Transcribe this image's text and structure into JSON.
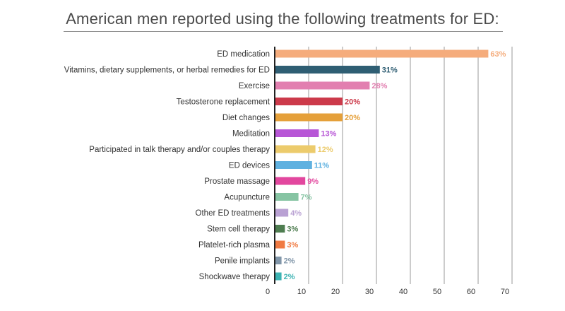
{
  "title": "American men reported using the following treatments for ED:",
  "chart_data": {
    "type": "bar",
    "orientation": "horizontal",
    "title": "American men reported using the following treatments for ED:",
    "xlabel": "",
    "ylabel": "",
    "xlim": [
      0,
      70
    ],
    "x_ticks": [
      0,
      10,
      20,
      30,
      40,
      50,
      60,
      70
    ],
    "grid": true,
    "categories": [
      "ED medication",
      "Vitamins, dietary supplements, or herbal remedies for ED",
      "Exercise",
      "Testosterone replacement",
      "Diet changes",
      "Meditation",
      "Participated in talk therapy and/or couples therapy",
      "ED devices",
      "Prostate massage",
      "Acupuncture",
      "Other ED treatments",
      "Stem cell therapy",
      "Platelet-rich plasma",
      "Penile implants",
      "Shockwave therapy"
    ],
    "values": [
      63,
      31,
      28,
      20,
      20,
      13,
      12,
      11,
      9,
      7,
      4,
      3,
      3,
      2,
      2
    ],
    "value_labels": [
      "63%",
      "31%",
      "28%",
      "20%",
      "20%",
      "13%",
      "12%",
      "11%",
      "9%",
      "7%",
      "4%",
      "3%",
      "3%",
      "2%",
      "2%"
    ],
    "colors": [
      "#f5ac7c",
      "#2f5e73",
      "#e27fb0",
      "#cc3a4a",
      "#e5a03a",
      "#b756d6",
      "#eccb6c",
      "#5fb1e0",
      "#e2479e",
      "#86c4a3",
      "#b9a1d3",
      "#4e7d50",
      "#f07a42",
      "#8196a9",
      "#3cb3b3"
    ]
  }
}
